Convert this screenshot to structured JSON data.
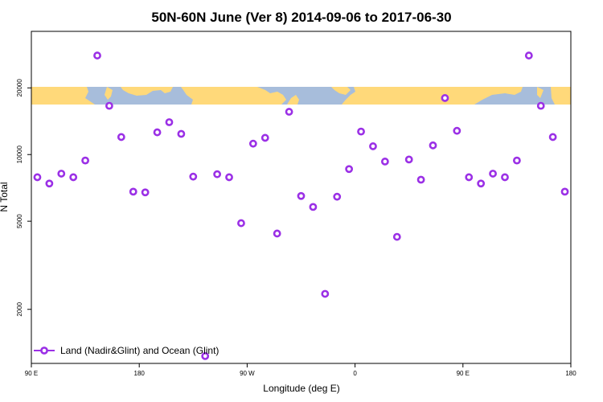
{
  "chart_data": {
    "type": "scatter",
    "title": "50N-60N June (Ver 8)   2014-09-06 to 2017-06-30",
    "xlabel": "Longitude (deg E)",
    "ylabel": "N Total",
    "x_range": [
      90,
      540
    ],
    "y_log": true,
    "y_range": [
      1140,
      36000
    ],
    "x_ticks": [
      {
        "value": 90,
        "label": "90 E"
      },
      {
        "value": 180,
        "label": "180"
      },
      {
        "value": 270,
        "label": "90 W"
      },
      {
        "value": 360,
        "label": "0"
      },
      {
        "value": 450,
        "label": "90 E"
      },
      {
        "value": 540,
        "label": "180"
      }
    ],
    "y_ticks": [
      {
        "value": 2000,
        "label": "2000"
      },
      {
        "value": 5000,
        "label": "5000"
      },
      {
        "value": 10000,
        "label": "10000"
      },
      {
        "value": 20000,
        "label": "20000"
      }
    ],
    "map_strip": {
      "lat_min": 50,
      "lat_max": 60,
      "ocean_color": "#a7bddb",
      "land_color": "#ffd97a"
    },
    "legend": {
      "placement": "bottom-left",
      "label": "Land (Nadir&Glint) and Ocean (Glint)"
    },
    "marker_color": "#9b30e6",
    "series": [
      {
        "name": "Land (Nadir&Glint) and Ocean (Glint)",
        "points": [
          [
            95,
            7900
          ],
          [
            105,
            7400
          ],
          [
            115,
            8200
          ],
          [
            125,
            7900
          ],
          [
            135,
            9400
          ],
          [
            145,
            28000
          ],
          [
            155,
            16600
          ],
          [
            165,
            12000
          ],
          [
            175,
            6800
          ],
          [
            185,
            6750
          ],
          [
            195,
            12600
          ],
          [
            205,
            14000
          ],
          [
            215,
            12400
          ],
          [
            225,
            7950
          ],
          [
            235,
            1230
          ],
          [
            245,
            8150
          ],
          [
            255,
            7900
          ],
          [
            265,
            4900
          ],
          [
            275,
            11200
          ],
          [
            285,
            11900
          ],
          [
            295,
            4400
          ],
          [
            305,
            15600
          ],
          [
            315,
            6500
          ],
          [
            325,
            5800
          ],
          [
            335,
            2350
          ],
          [
            345,
            6450
          ],
          [
            355,
            8600
          ],
          [
            365,
            12700
          ],
          [
            375,
            10900
          ],
          [
            385,
            9300
          ],
          [
            395,
            4250
          ],
          [
            405,
            9500
          ],
          [
            415,
            7700
          ],
          [
            425,
            11000
          ],
          [
            435,
            18000
          ],
          [
            445,
            12800
          ],
          [
            455,
            7900
          ],
          [
            465,
            7400
          ],
          [
            475,
            8200
          ],
          [
            485,
            7900
          ],
          [
            495,
            9400
          ],
          [
            505,
            28000
          ],
          [
            515,
            16600
          ],
          [
            525,
            12000
          ],
          [
            535,
            6800
          ]
        ]
      }
    ]
  }
}
